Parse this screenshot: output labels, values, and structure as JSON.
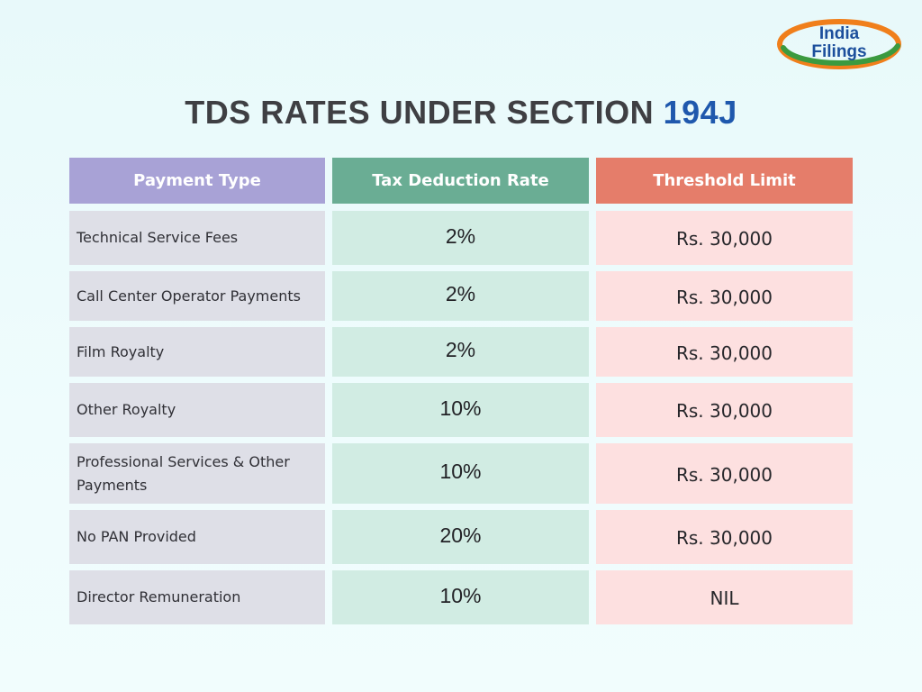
{
  "logo": {
    "line1": "India",
    "line2": "Filings",
    "colors": {
      "orange": "#f07f1b",
      "green": "#3b9a3f",
      "text": "#1c4f9c"
    }
  },
  "title": {
    "main": "TDS RATES UNDER SECTION",
    "highlight": "194J"
  },
  "table": {
    "headers": {
      "payment_type": "Payment Type",
      "rate": "Tax Deduction Rate",
      "threshold": "Threshold Limit"
    },
    "rows": [
      {
        "type": "Technical Service Fees",
        "rate": "2%",
        "threshold": "Rs. 30,000"
      },
      {
        "type": "Call Center Operator Payments",
        "rate": "2%",
        "threshold": "Rs. 30,000"
      },
      {
        "type": "Film Royalty",
        "rate": "2%",
        "threshold": "Rs. 30,000"
      },
      {
        "type": "Other Royalty",
        "rate": "10%",
        "threshold": "Rs. 30,000"
      },
      {
        "type": "Professional Services & Other Payments",
        "rate": "10%",
        "threshold": "Rs. 30,000"
      },
      {
        "type": "No PAN Provided",
        "rate": "20%",
        "threshold": "Rs. 30,000"
      },
      {
        "type": "Director Remuneration",
        "rate": "10%",
        "threshold": "NIL"
      }
    ]
  },
  "colors": {
    "title_text": "#3f3f43",
    "title_highlight": "#1f58ad",
    "header_payment_type": "#a8a2d6",
    "header_rate": "#6aad94",
    "header_threshold": "#e57d6a",
    "cell_payment_type": "#dedfe7",
    "cell_rate": "#d1ece3",
    "cell_threshold": "#fde0e0"
  }
}
